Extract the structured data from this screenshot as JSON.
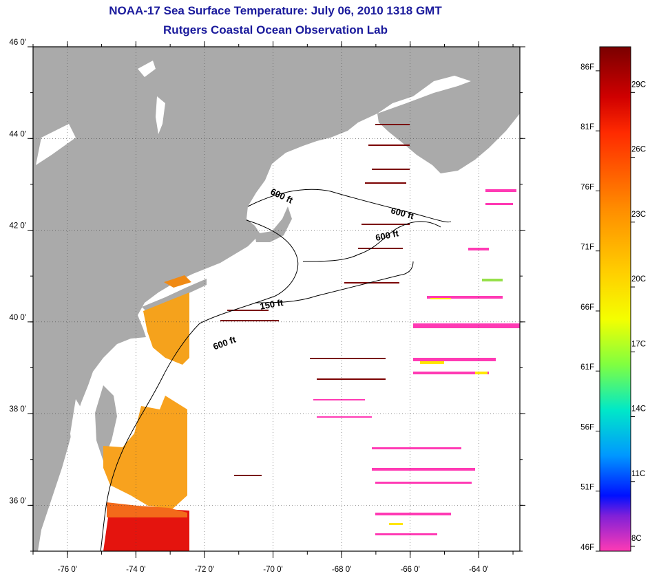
{
  "title": {
    "line1": "NOAA-17 Sea Surface Temperature:  July 06, 2010 1318 GMT",
    "line2": "Rutgers Coastal Ocean Observation Lab"
  },
  "map": {
    "lat_labels": [
      "46 0'",
      "44 0'",
      "42 0'",
      "40 0'",
      "38 0'",
      "36 0'"
    ],
    "lat_values": [
      46,
      44,
      42,
      40,
      38,
      36
    ],
    "lon_labels": [
      "-76 0'",
      "-74 0'",
      "-72 0'",
      "-70 0'",
      "-68 0'",
      "-66 0'",
      "-64 0'"
    ],
    "lon_values": [
      -76,
      -74,
      -72,
      -70,
      -68,
      -66,
      -64
    ],
    "extent": {
      "lon_min": -77,
      "lon_max": -62.8,
      "lat_min": 35,
      "lat_max": 46
    },
    "contour_labels": [
      "600 ft",
      "600 ft",
      "600 ft",
      "150 ft",
      "600 ft"
    ],
    "land_color": "#aaaaaa"
  },
  "colorbar": {
    "fahrenheit": [
      "86F",
      "81F",
      "76F",
      "71F",
      "66F",
      "61F",
      "56F",
      "51F",
      "46F"
    ],
    "celsius": [
      "29C",
      "26C",
      "23C",
      "20C",
      "17C",
      "14C",
      "11C",
      "8C"
    ],
    "range_f": [
      46,
      88
    ]
  }
}
